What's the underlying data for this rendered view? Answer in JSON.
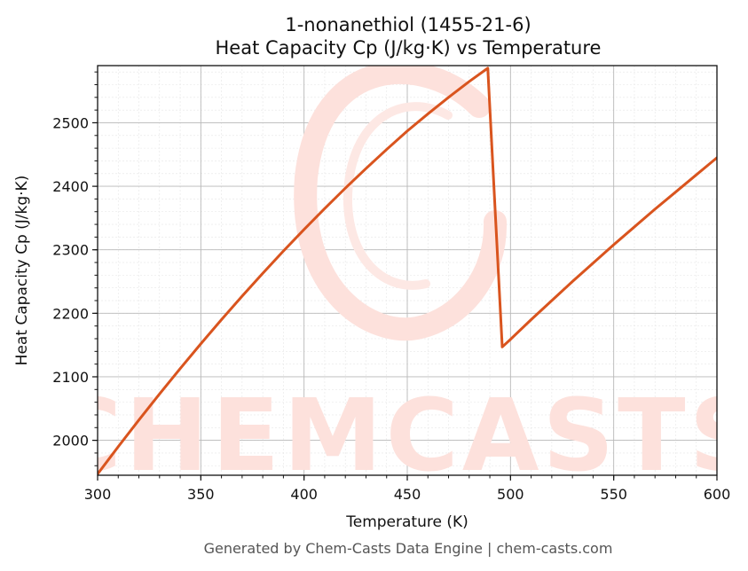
{
  "chart_data": {
    "type": "line",
    "title_line1": "1-nonanethiol (1455-21-6)",
    "title_line2": "Heat Capacity Cp (J/kg·K) vs Temperature",
    "xlabel": "Temperature (K)",
    "ylabel": "Heat Capacity Cp (J/kg·K)",
    "xlim": [
      300,
      600
    ],
    "ylim": [
      1945,
      2590
    ],
    "x_ticks": [
      300,
      350,
      400,
      450,
      500,
      550,
      600
    ],
    "y_ticks": [
      2000,
      2100,
      2200,
      2300,
      2400,
      2500
    ],
    "grid": true,
    "series": [
      {
        "color": "#d9541e",
        "x": [
          300,
          310,
          320,
          330,
          340,
          350,
          360,
          370,
          380,
          390,
          400,
          410,
          420,
          430,
          440,
          450,
          460,
          470,
          480,
          489,
          496,
          500,
          510,
          520,
          530,
          540,
          550,
          560,
          570,
          580,
          590,
          600
        ],
        "y": [
          1947,
          1990,
          2032,
          2073,
          2113,
          2152,
          2190,
          2227,
          2263,
          2298,
          2332,
          2365,
          2397,
          2428,
          2458,
          2487,
          2514,
          2540,
          2565,
          2586,
          2147,
          2159,
          2190,
          2220,
          2250,
          2279,
          2308,
          2336,
          2364,
          2391,
          2418,
          2445
        ]
      }
    ]
  },
  "watermark": {
    "text": "CHEMCASTS",
    "color": "#fde1dc"
  },
  "footer": "Generated by Chem-Casts Data Engine | chem-casts.com"
}
